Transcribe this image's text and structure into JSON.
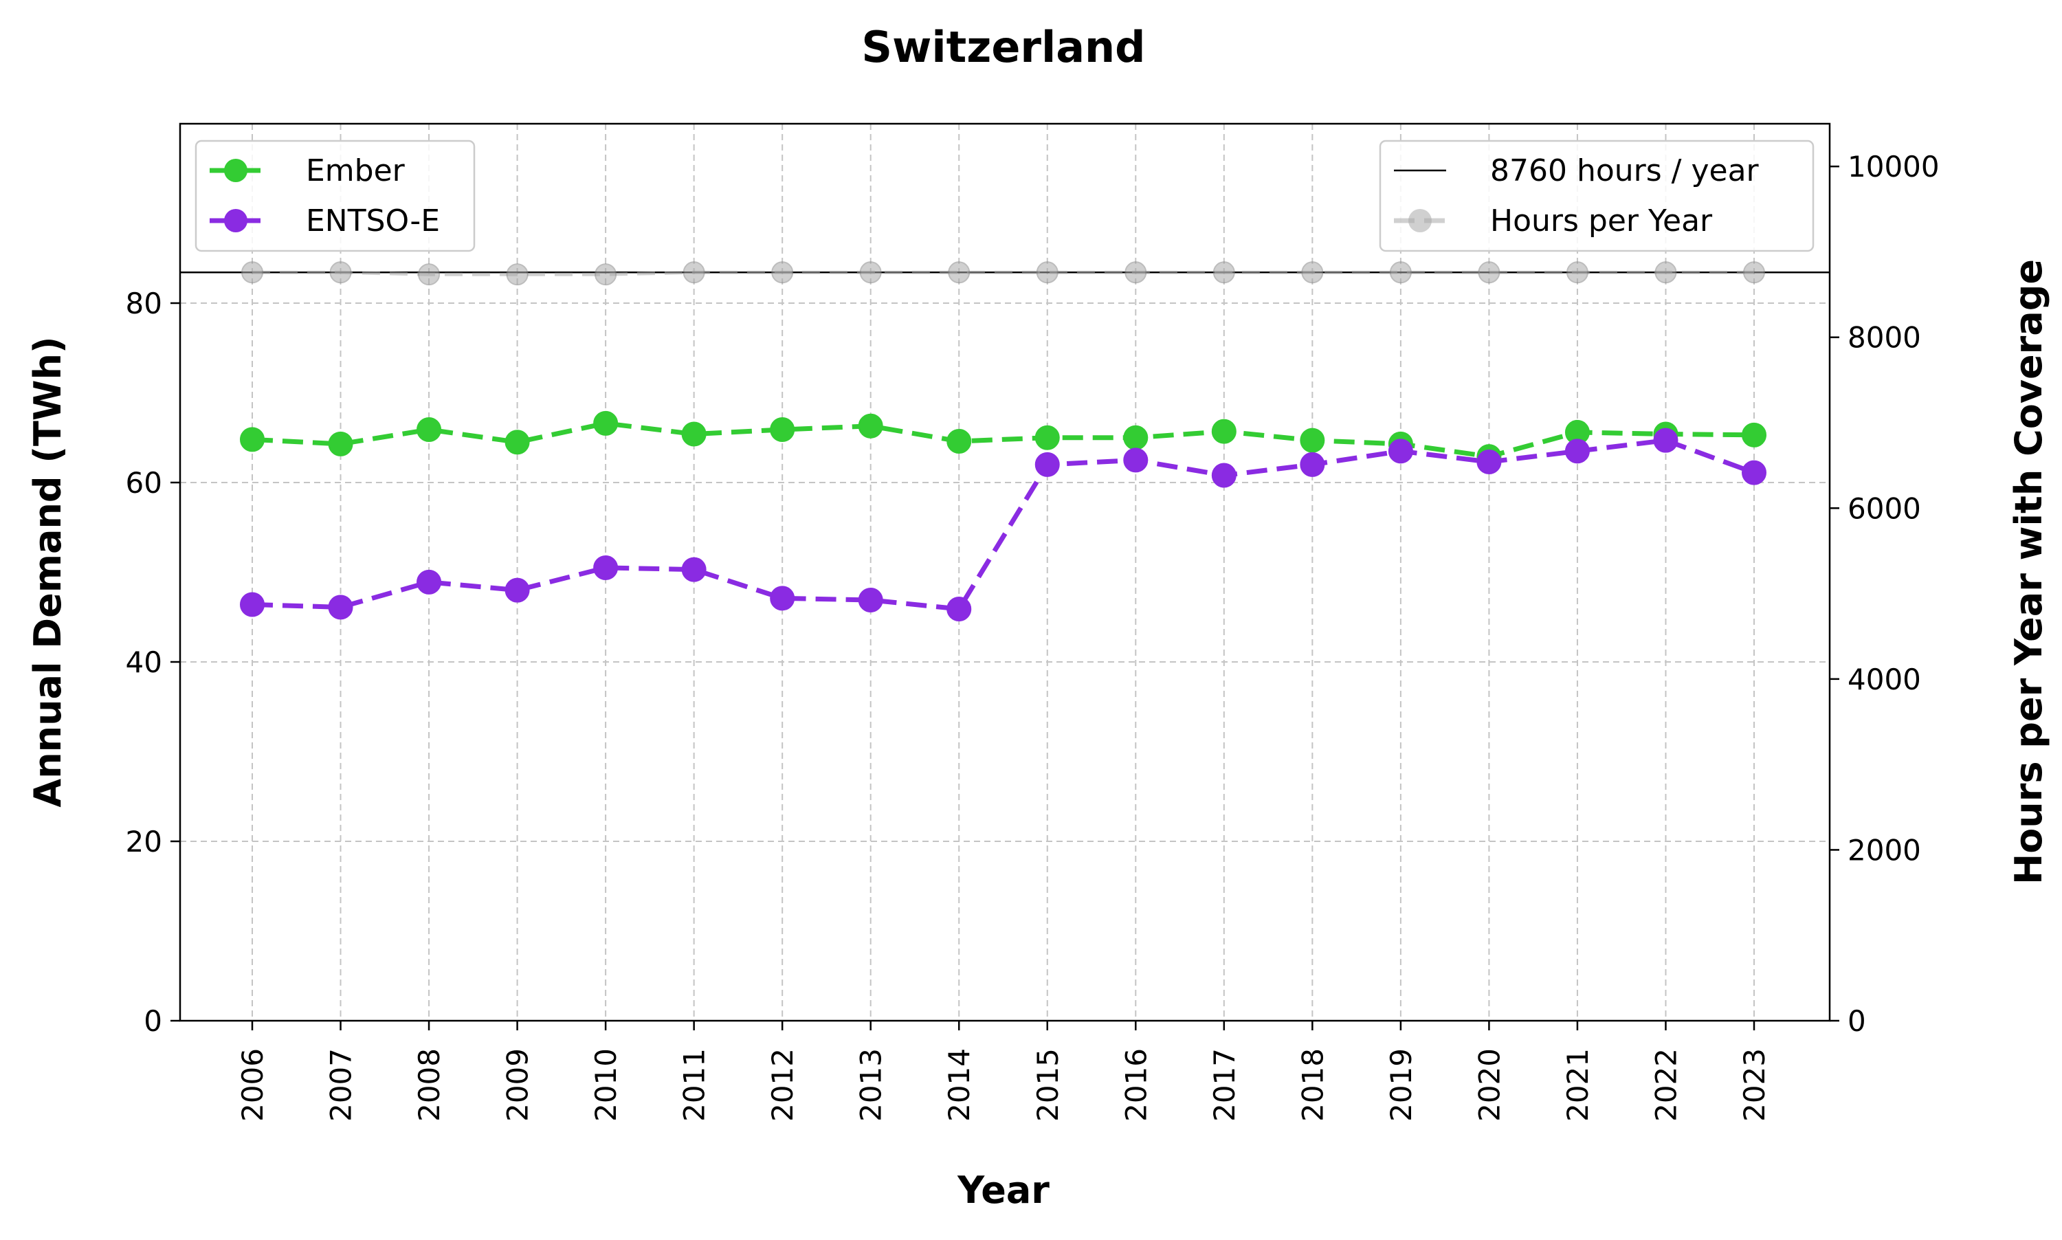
{
  "chart_data": {
    "type": "line",
    "title": "Switzerland",
    "xlabel": "Year",
    "ylabel": "Annual Demand (TWh)",
    "y2label": "Hours per Year with Coverage",
    "categories": [
      "2006",
      "2007",
      "2008",
      "2009",
      "2010",
      "2011",
      "2012",
      "2013",
      "2014",
      "2015",
      "2016",
      "2017",
      "2018",
      "2019",
      "2020",
      "2021",
      "2022",
      "2023"
    ],
    "ylim": [
      0,
      100
    ],
    "y2lim": [
      0,
      10500
    ],
    "yticks": [
      0,
      20,
      40,
      60,
      80
    ],
    "y2ticks": [
      0,
      2000,
      4000,
      6000,
      8000,
      10000
    ],
    "grid": true,
    "series": [
      {
        "name": "Ember",
        "axis": "left",
        "color": "#33cc33",
        "style": "dashed",
        "values": [
          64.8,
          64.3,
          65.9,
          64.5,
          66.6,
          65.4,
          65.9,
          66.3,
          64.6,
          65.0,
          65.0,
          65.7,
          64.7,
          64.3,
          62.9,
          65.6,
          65.4,
          65.3
        ]
      },
      {
        "name": "ENTSO-E",
        "axis": "left",
        "color": "#8a2be2",
        "style": "dashed",
        "values": [
          46.4,
          46.1,
          48.9,
          48.0,
          50.5,
          50.3,
          47.1,
          46.9,
          45.9,
          62.0,
          62.5,
          60.8,
          62.0,
          63.5,
          62.3,
          63.5,
          64.7,
          61.1
        ]
      },
      {
        "name": "Hours per Year",
        "axis": "right",
        "color": "#aaaaaa",
        "style": "dashed",
        "values": [
          8760,
          8760,
          8736,
          8736,
          8736,
          8760,
          8760,
          8760,
          8760,
          8760,
          8760,
          8760,
          8760,
          8760,
          8760,
          8760,
          8760,
          8760
        ]
      }
    ],
    "reference_line": {
      "name": "8760 hours / year",
      "axis": "right",
      "value": 8760,
      "color": "#000000"
    },
    "legend_left": {
      "placement": "upper-left",
      "entries": [
        "Ember",
        "ENTSO-E"
      ]
    },
    "legend_right": {
      "placement": "upper-right",
      "entries": [
        "8760 hours / year",
        "Hours per Year"
      ]
    }
  }
}
